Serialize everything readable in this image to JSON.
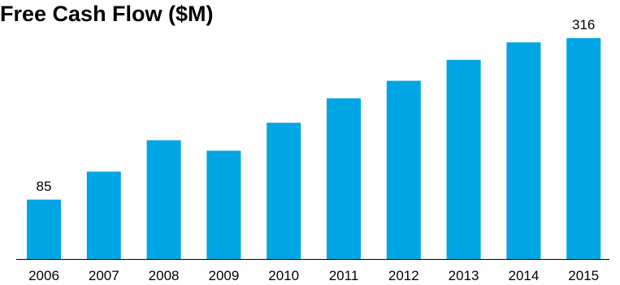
{
  "chart_data": {
    "type": "bar",
    "title": "Free Cash Flow ($M)",
    "xlabel": "",
    "ylabel": "",
    "categories": [
      "2006",
      "2007",
      "2008",
      "2009",
      "2010",
      "2011",
      "2012",
      "2013",
      "2014",
      "2015"
    ],
    "values": [
      85,
      125,
      170,
      155,
      195,
      230,
      255,
      285,
      310,
      316
    ],
    "data_labels": [
      {
        "category": "2006",
        "text": "85"
      },
      {
        "category": "2015",
        "text": "316"
      }
    ],
    "ylim": [
      0,
      330
    ],
    "grid": false,
    "legend": "none",
    "bar_color": "#00a6e4",
    "axis_color": "#000000"
  }
}
